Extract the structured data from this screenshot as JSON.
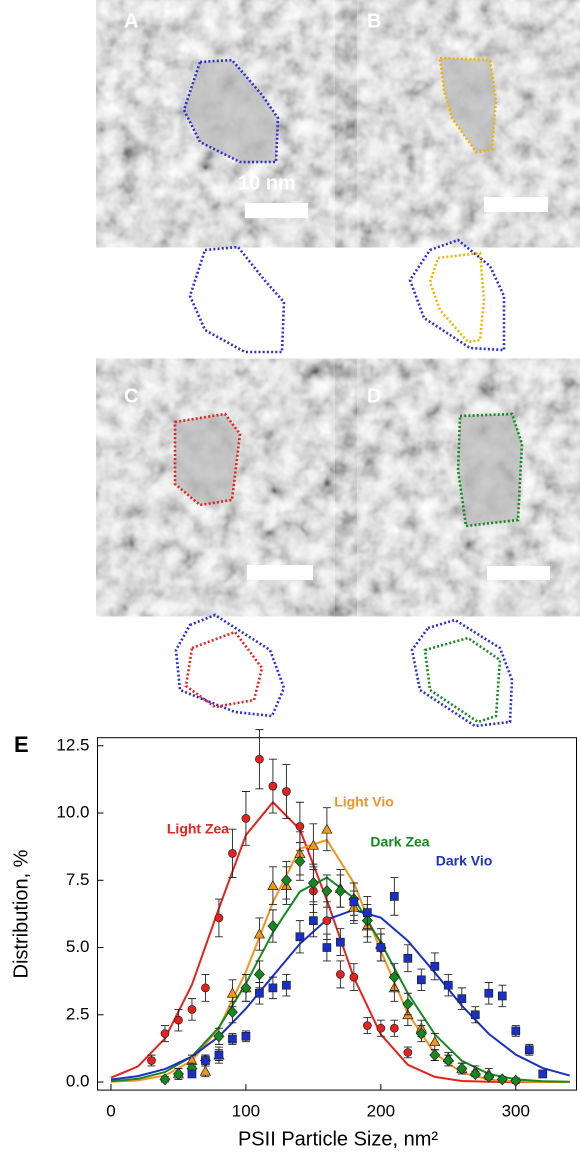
{
  "panels": [
    {
      "label": "A",
      "scale_label": "10 nm"
    },
    {
      "label": "B"
    },
    {
      "label": "C"
    },
    {
      "label": "D"
    }
  ],
  "chart_data": {
    "type": "scatter",
    "panel_label": "E",
    "x_label": "PSII Particle Size, nm²",
    "y_label": "Distribution, %",
    "xlim": [
      -10,
      345
    ],
    "ylim": [
      -0.3,
      12.8
    ],
    "xticks": [
      0,
      100,
      200,
      300
    ],
    "yticks": [
      {
        "value": 0,
        "label": "0.0"
      },
      2.5,
      {
        "value": 5,
        "label": "5.0"
      },
      7.5,
      {
        "value": 10,
        "label": "10.0"
      },
      12.5
    ],
    "fit_x": [
      0,
      20,
      40,
      60,
      80,
      100,
      120,
      140,
      160,
      180,
      200,
      220,
      240,
      260,
      280,
      300,
      320,
      340
    ],
    "series": [
      {
        "name": "Light Zea",
        "color": "#e8211d",
        "marker": "circle",
        "x": [
          30,
          40,
          50,
          60,
          70,
          80,
          90,
          100,
          110,
          120,
          130,
          140,
          150,
          160,
          170,
          180,
          190,
          200,
          210,
          220
        ],
        "values": [
          0.8,
          1.8,
          2.3,
          2.7,
          3.5,
          6.1,
          8.5,
          9.8,
          12.0,
          11.0,
          10.8,
          9.5,
          7.1,
          6.0,
          4.0,
          3.9,
          2.1,
          2.0,
          2.0,
          1.1
        ],
        "errors": [
          0.2,
          0.3,
          0.4,
          0.4,
          0.5,
          0.7,
          0.9,
          1.0,
          1.1,
          1.0,
          1.0,
          0.9,
          0.8,
          0.7,
          0.5,
          0.5,
          0.3,
          0.3,
          0.3,
          0.2
        ],
        "fit": [
          0.16,
          0.58,
          1.62,
          3.62,
          6.46,
          9.18,
          10.4,
          9.39,
          6.76,
          3.88,
          1.77,
          0.64,
          0.19,
          0.04,
          0.01,
          0,
          0,
          0
        ]
      },
      {
        "name": "Light Vio",
        "color": "#f7941d",
        "marker": "triangle",
        "x": [
          50,
          60,
          70,
          80,
          90,
          100,
          110,
          120,
          130,
          140,
          150,
          160,
          170,
          180,
          190,
          200,
          210,
          220,
          230,
          240,
          250,
          260,
          270,
          280
        ],
        "values": [
          0.3,
          0.8,
          0.4,
          1.0,
          3.3,
          3.5,
          5.5,
          7.3,
          7.3,
          8.5,
          8.8,
          9.4,
          7.2,
          6.5,
          5.8,
          5.1,
          3.5,
          2.5,
          2.0,
          1.5,
          0.9,
          0.5,
          0.4,
          0.3
        ],
        "errors": [
          0.2,
          0.2,
          0.2,
          0.3,
          0.5,
          0.5,
          0.6,
          0.7,
          0.7,
          0.8,
          0.8,
          0.8,
          0.7,
          0.6,
          0.6,
          0.6,
          0.5,
          0.4,
          0.3,
          0.3,
          0.2,
          0.2,
          0.2,
          0.2
        ],
        "fit": [
          0.01,
          0.06,
          0.24,
          0.79,
          2.01,
          4.1,
          6.68,
          8.67,
          9.0,
          7.4,
          4.87,
          2.55,
          1.06,
          0.35,
          0.09,
          0.02,
          0,
          0
        ]
      },
      {
        "name": "Dark Zea",
        "color": "#13891f",
        "marker": "diamond",
        "x": [
          40,
          50,
          60,
          70,
          80,
          90,
          100,
          110,
          120,
          130,
          140,
          150,
          160,
          170,
          180,
          190,
          200,
          210,
          220,
          230,
          240,
          250,
          260,
          270,
          280,
          290,
          300
        ],
        "values": [
          0.1,
          0.3,
          0.5,
          0.8,
          1.7,
          2.6,
          3.5,
          4.0,
          5.8,
          7.5,
          8.2,
          7.4,
          7.1,
          7.1,
          6.8,
          6.0,
          5.0,
          3.9,
          2.9,
          1.8,
          1.0,
          0.8,
          0.5,
          0.3,
          0.2,
          0.1,
          0.05
        ],
        "errors": [
          0.1,
          0.2,
          0.2,
          0.2,
          0.3,
          0.4,
          0.5,
          0.5,
          0.6,
          0.7,
          0.7,
          0.7,
          0.6,
          0.6,
          0.6,
          0.6,
          0.5,
          0.5,
          0.4,
          0.3,
          0.2,
          0.2,
          0.2,
          0.1,
          0.1,
          0.1,
          0.1
        ],
        "fit": [
          0.03,
          0.12,
          0.37,
          0.95,
          2.03,
          3.66,
          5.56,
          7.08,
          7.6,
          6.84,
          5.18,
          3.3,
          1.77,
          0.79,
          0.3,
          0.1,
          0.03,
          0.01
        ]
      },
      {
        "name": "Dark Vio",
        "color": "#1a2fc9",
        "marker": "square",
        "x": [
          60,
          70,
          80,
          90,
          100,
          110,
          120,
          130,
          140,
          150,
          160,
          170,
          180,
          190,
          200,
          210,
          220,
          230,
          240,
          250,
          260,
          270,
          280,
          290,
          300,
          310,
          320
        ],
        "values": [
          0.3,
          0.8,
          1.0,
          1.6,
          1.7,
          3.3,
          3.5,
          3.6,
          5.4,
          6.0,
          5.0,
          5.2,
          6.7,
          6.3,
          5.0,
          6.9,
          4.6,
          3.8,
          4.3,
          3.6,
          3.1,
          2.5,
          3.3,
          3.2,
          1.9,
          1.2,
          0.3
        ],
        "errors": [
          0.1,
          0.2,
          0.2,
          0.2,
          0.2,
          0.4,
          0.4,
          0.4,
          0.6,
          0.6,
          0.5,
          0.5,
          0.7,
          0.6,
          0.5,
          0.7,
          0.5,
          0.4,
          0.5,
          0.4,
          0.4,
          0.3,
          0.4,
          0.4,
          0.2,
          0.2,
          0.1
        ],
        "fit": [
          0.09,
          0.22,
          0.48,
          0.95,
          1.69,
          2.73,
          3.94,
          5.14,
          6.04,
          6.4,
          6.11,
          5.25,
          4.07,
          2.84,
          1.79,
          1.02,
          0.52,
          0.24
        ]
      }
    ]
  }
}
